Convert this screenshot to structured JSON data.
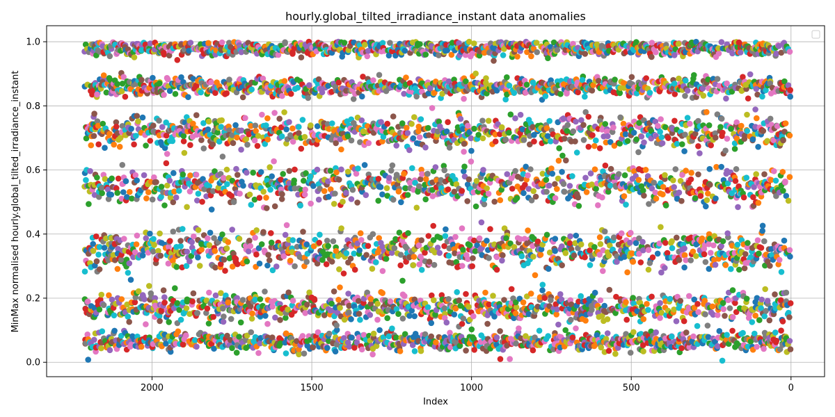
{
  "chart_data": {
    "type": "scatter",
    "title": "hourly.global_tilted_irradiance_instant data anomalies",
    "xlabel": "Index",
    "ylabel": "MinMax normalised hourly.global_tilted_irradiance_instant",
    "xlim": [
      2330,
      -105
    ],
    "ylim": [
      -0.045,
      1.05
    ],
    "x_ticks": [
      2000,
      1500,
      1000,
      500,
      0
    ],
    "y_ticks": [
      0.0,
      0.2,
      0.4,
      0.6,
      0.8,
      1.0
    ],
    "x_tick_labels": [
      "2000",
      "1500",
      "1000",
      "500",
      "0"
    ],
    "y_tick_labels": [
      "0.0",
      "0.2",
      "0.4",
      "0.6",
      "0.8",
      "1.0"
    ],
    "grid": true,
    "legend": "top-right (empty)",
    "x_range_of_data": [
      0,
      2210
    ],
    "value_bands": [
      {
        "center": 0.065,
        "spread": 0.03
      },
      {
        "center": 0.17,
        "spread": 0.045
      },
      {
        "center": 0.35,
        "spread": 0.06
      },
      {
        "center": 0.55,
        "spread": 0.06
      },
      {
        "center": 0.72,
        "spread": 0.05
      },
      {
        "center": 0.86,
        "spread": 0.03
      },
      {
        "center": 0.98,
        "spread": 0.025
      }
    ],
    "isolated_points": [
      {
        "x": 2200,
        "y": 0.008
      },
      {
        "x": 910,
        "y": 0.01
      },
      {
        "x": 880,
        "y": 0.01
      },
      {
        "x": 215,
        "y": 0.005
      },
      {
        "x": 1735,
        "y": 0.03
      },
      {
        "x": 950,
        "y": 0.12
      }
    ],
    "colors": [
      "#1f77b4",
      "#ff7f0e",
      "#2ca02c",
      "#d62728",
      "#9467bd",
      "#8c564b",
      "#e377c2",
      "#7f7f7f",
      "#bcbd22",
      "#17becf"
    ]
  }
}
